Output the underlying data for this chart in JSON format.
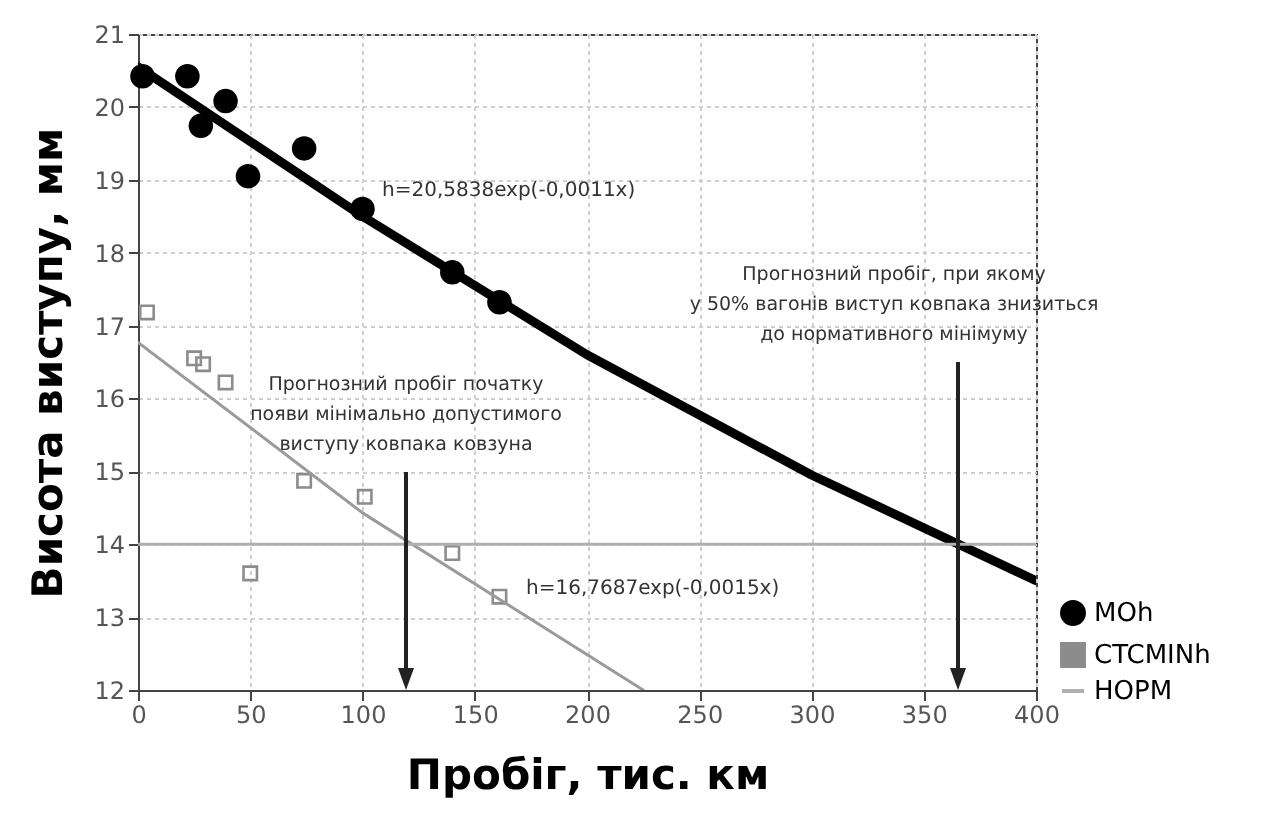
{
  "chart_data": {
    "type": "scatter",
    "xlabel": "Пробіг, тис. км",
    "ylabel": "Висота виступу, мм",
    "xlim": [
      0,
      400
    ],
    "xticks": [
      0,
      50,
      100,
      150,
      200,
      250,
      300,
      350,
      400
    ],
    "ylim": [
      12,
      21
    ],
    "yticks": [
      12,
      13,
      14,
      15,
      16,
      17,
      18,
      19,
      20,
      21
    ],
    "grid": true,
    "legend": "bottom right",
    "series": [
      {
        "name": "MOh",
        "marker": "circle",
        "color": "#000000",
        "x": [
          2,
          22,
          28,
          39,
          49,
          74,
          100,
          140,
          161
        ],
        "values": [
          20.42,
          20.42,
          19.74,
          20.08,
          19.05,
          19.43,
          18.6,
          17.73,
          17.32
        ]
      },
      {
        "type": "line",
        "color": "#000000",
        "x": [
          0,
          100,
          200,
          300,
          400
        ],
        "values": [
          20.55,
          18.5,
          16.6,
          14.95,
          13.5
        ]
      },
      {
        "name": "CTCMINh",
        "marker": "square",
        "color": "#8c8c8c",
        "x": [
          4,
          25,
          29,
          39,
          50,
          74,
          101,
          140,
          161
        ],
        "values": [
          17.18,
          16.55,
          16.47,
          16.22,
          13.6,
          14.87,
          14.65,
          13.88,
          13.28
        ]
      },
      {
        "type": "line",
        "color": "#9a9a9a",
        "x": [
          0,
          100,
          225
        ],
        "values": [
          16.77,
          14.43,
          12.0
        ]
      },
      {
        "name": "HOPM",
        "type": "line",
        "color": "#b0b0b0",
        "x": [
          0,
          400
        ],
        "values": [
          14,
          14
        ]
      }
    ],
    "annotations": [
      "h=20,5838exp(-0,0011x)",
      "h=16,7687exp(-0,0015x)",
      "Прогнозний пробіг початку\nпояви мінімально допустимого\nвиступу ковпака ковзуна",
      "Прогнозний пробіг, при якому\nу 50% вагонів виступ ковпака знизиться\nдо нормативного мінімуму"
    ]
  }
}
